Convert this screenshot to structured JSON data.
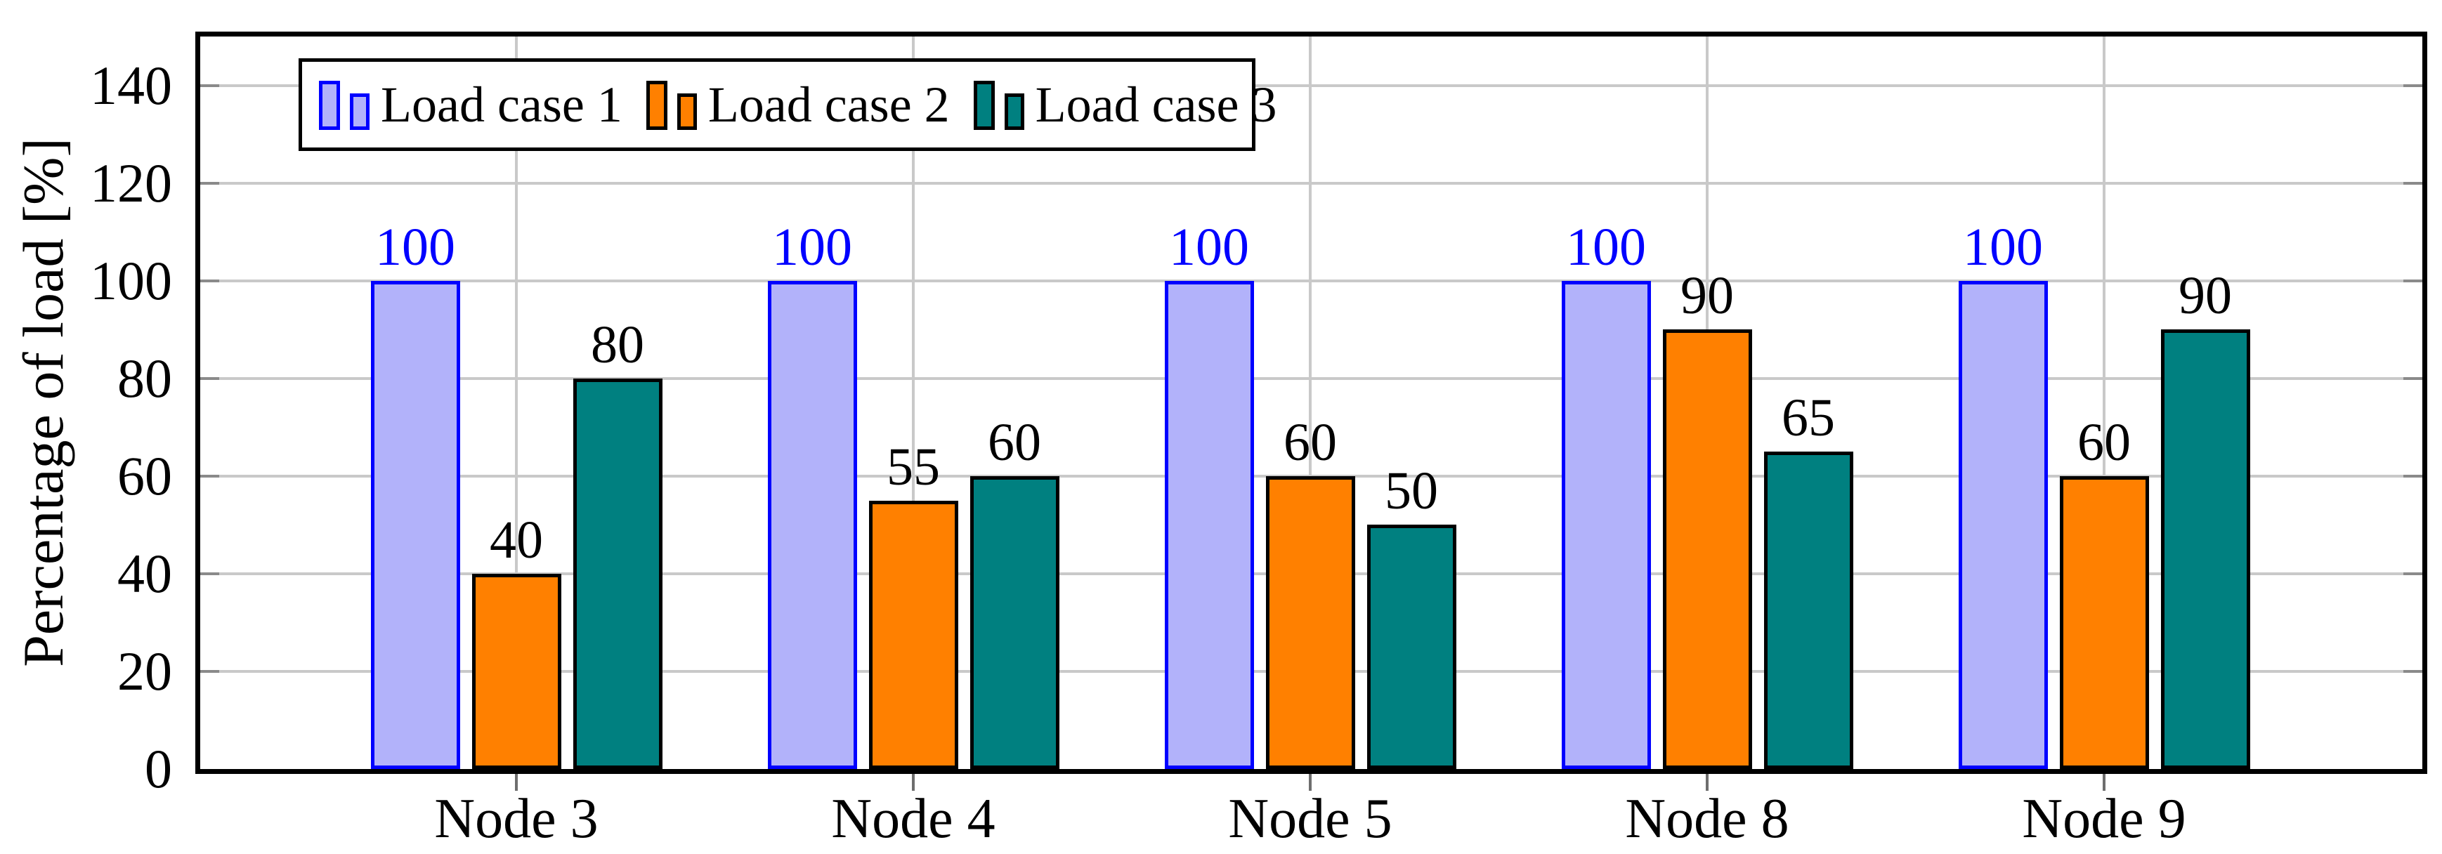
{
  "figure": {
    "ylabel": "Percentage of load [%]"
  },
  "chart_data": {
    "type": "bar",
    "title": "",
    "categories": [
      "Node 3",
      "Node 4",
      "Node 5",
      "Node 8",
      "Node 9"
    ],
    "series": [
      {
        "name": "Load case 1",
        "fill": "#b2b2fa",
        "border": "#0000ff",
        "label_color": "#0000ff",
        "values": [
          100,
          100,
          100,
          100,
          100
        ]
      },
      {
        "name": "Load case 2",
        "fill": "#ff8000",
        "border": "#000000",
        "label_color": "#000000",
        "values": [
          40,
          55,
          60,
          90,
          60
        ]
      },
      {
        "name": "Load case 3",
        "fill": "#008080",
        "border": "#000000",
        "label_color": "#000000",
        "values": [
          80,
          60,
          50,
          65,
          90
        ]
      }
    ],
    "xlabel": "",
    "ylabel": "Percentage of load [%]",
    "ylim": [
      0,
      150
    ],
    "yticks": [
      0,
      20,
      40,
      60,
      80,
      100,
      120,
      140
    ],
    "grid": true,
    "grid_color": "#c9c9c9",
    "legend_position": "top-left",
    "bar_value_labels": true
  }
}
